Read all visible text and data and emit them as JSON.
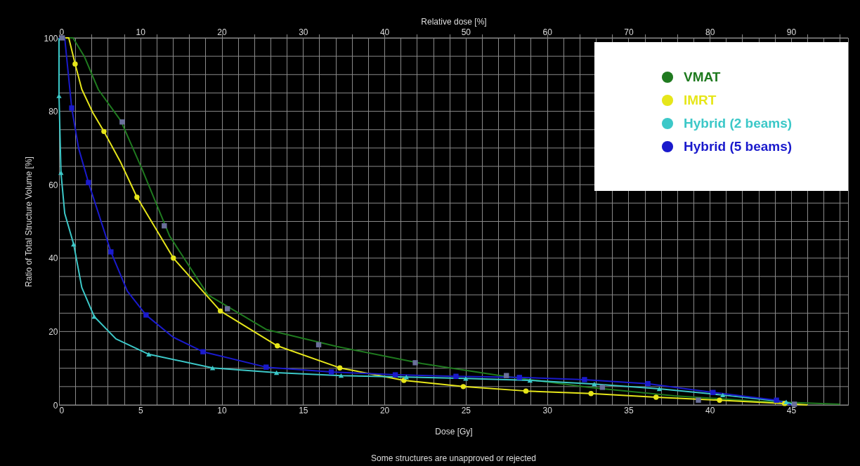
{
  "chart_data": {
    "type": "line",
    "xlabel": "Dose [Gy]",
    "ylabel": "Ratio of Total Structure Volume [%]",
    "x2label": "Relative dose [%]",
    "annotations": [
      "Some structures are unapproved or rejected"
    ],
    "xlim": [
      0,
      48.5
    ],
    "ylim": [
      0,
      100
    ],
    "x2lim": [
      0,
      97
    ],
    "xticks": [
      0,
      {
        "value": 1,
        "label": null
      },
      {
        "value": 2,
        "label": null
      },
      {
        "value": 3,
        "label": null
      },
      {
        "value": 4,
        "label": null
      },
      5,
      {
        "value": 6,
        "label": null
      },
      {
        "value": 7,
        "label": null
      },
      {
        "value": 8,
        "label": null
      },
      {
        "value": 9,
        "label": null
      },
      10,
      {
        "value": 11,
        "label": null
      },
      {
        "value": 12,
        "label": null
      },
      {
        "value": 13,
        "label": null
      },
      {
        "value": 14,
        "label": null
      },
      15,
      {
        "value": 16,
        "label": null
      },
      {
        "value": 17,
        "label": null
      },
      {
        "value": 18,
        "label": null
      },
      {
        "value": 19,
        "label": null
      },
      20,
      {
        "value": 21,
        "label": null
      },
      {
        "value": 22,
        "label": null
      },
      {
        "value": 23,
        "label": null
      },
      {
        "value": 24,
        "label": null
      },
      25,
      {
        "value": 26,
        "label": null
      },
      {
        "value": 27,
        "label": null
      },
      {
        "value": 28,
        "label": null
      },
      {
        "value": 29,
        "label": null
      },
      30,
      {
        "value": 31,
        "label": null
      },
      {
        "value": 32,
        "label": null
      },
      {
        "value": 33,
        "label": null
      },
      {
        "value": 34,
        "label": null
      },
      35,
      {
        "value": 36,
        "label": null
      },
      {
        "value": 37,
        "label": null
      },
      {
        "value": 38,
        "label": null
      },
      {
        "value": 39,
        "label": null
      },
      40,
      {
        "value": 41,
        "label": null
      },
      {
        "value": 42,
        "label": null
      },
      {
        "value": 43,
        "label": null
      },
      {
        "value": 44,
        "label": null
      },
      45,
      {
        "value": 46,
        "label": null
      },
      {
        "value": 47,
        "label": null
      },
      {
        "value": 48,
        "label": null
      }
    ],
    "yticks": [
      0,
      {
        "value": 5,
        "label": null
      },
      {
        "value": 10,
        "label": null
      },
      {
        "value": 15,
        "label": null
      },
      20,
      {
        "value": 25,
        "label": null
      },
      {
        "value": 30,
        "label": null
      },
      {
        "value": 35,
        "label": null
      },
      40,
      {
        "value": 45,
        "label": null
      },
      {
        "value": 50,
        "label": null
      },
      {
        "value": 55,
        "label": null
      },
      60,
      {
        "value": 65,
        "label": null
      },
      {
        "value": 70,
        "label": null
      },
      {
        "value": 75,
        "label": null
      },
      80,
      {
        "value": 85,
        "label": null
      },
      {
        "value": 90,
        "label": null
      },
      {
        "value": 95,
        "label": null
      },
      100
    ],
    "x2ticks": [
      0,
      10,
      20,
      30,
      40,
      50,
      60,
      70,
      80,
      90
    ],
    "grid": true,
    "legend": "top right",
    "line_style": "solid",
    "marker": "none",
    "series": [
      {
        "name": "VMAT",
        "color": "#1f7a1f",
        "x": [
          0,
          0.86,
          1.55,
          2.42,
          3.8,
          5.09,
          6.8,
          9.15,
          12.77,
          17.08,
          22.3,
          27.4,
          32.6,
          37.8,
          43.0,
          48.0
        ],
        "values": [
          100,
          100,
          95,
          85.9,
          77.4,
          64.4,
          46,
          30.0,
          20.5,
          15.9,
          11.3,
          7.8,
          4.8,
          2.5,
          1.0,
          0.2
        ]
      },
      {
        "name": "IMRT",
        "color": "#e6e61a",
        "x": [
          0,
          0.6,
          0.99,
          1.4,
          2.07,
          2.76,
          3.8,
          4.79,
          7.03,
          9.92,
          13.42,
          17.26,
          21.2,
          24.85,
          28.7,
          32.7,
          36.7,
          40.6,
          44.6,
          46
        ],
        "values": [
          100,
          100,
          92.9,
          86,
          79.7,
          74.5,
          66,
          56.6,
          40.0,
          25.6,
          16.1,
          10.1,
          6.7,
          5.0,
          3.8,
          3.1,
          2.1,
          1.3,
          0.4,
          0
        ]
      },
      {
        "name": "Hybrid (2 beams)",
        "color": "#3cc8c8",
        "x": [
          0,
          0,
          0.12,
          0.35,
          0.9,
          1.4,
          2.16,
          3.5,
          5.52,
          9.44,
          13.37,
          17.34,
          21.35,
          25.0,
          28.95,
          32.9,
          36.9,
          40.8,
          44.7,
          45.2
        ],
        "values": [
          100,
          84.2,
          63.3,
          52.2,
          43.8,
          32,
          24.1,
          18,
          13.8,
          10.1,
          8.8,
          8.0,
          7.6,
          7.2,
          6.7,
          5.7,
          4.4,
          2.7,
          0.8,
          0
        ]
      },
      {
        "name": "Hybrid (5 beams)",
        "color": "#1a1acc",
        "x": [
          0,
          0.35,
          0.78,
          1.2,
          1.81,
          3.19,
          4.2,
          5.35,
          7,
          8.85,
          12.73,
          16.74,
          20.67,
          24.4,
          28.3,
          32.3,
          36.2,
          40.2,
          44.1,
          45
        ],
        "values": [
          100,
          100,
          80.9,
          70,
          60.6,
          41.7,
          31,
          24.5,
          18.5,
          14.5,
          10.3,
          9.0,
          8.2,
          7.8,
          7.5,
          6.9,
          5.8,
          3.4,
          1.3,
          0
        ]
      },
      {
        "type": "scatter",
        "marker": "square",
        "color": "#6a6f9a",
        "x": [
          0.2,
          3.88,
          6.47,
          10.35,
          15.96,
          21.9,
          27.5,
          33.4,
          39.3,
          45.2
        ],
        "values": [
          100,
          77.1,
          48.8,
          26.2,
          16.4,
          11.5,
          8.0,
          4.8,
          1.3,
          0.2
        ]
      },
      {
        "type": "scatter",
        "marker": "circle",
        "color": "#e6e61a",
        "x": [
          0.99,
          2.76,
          4.79,
          7.03,
          9.92,
          13.42,
          17.26,
          21.2,
          24.85,
          28.7,
          32.7,
          36.7,
          40.6,
          44.6
        ],
        "values": [
          92.9,
          74.5,
          56.6,
          40.0,
          25.6,
          16.1,
          10.1,
          6.7,
          5.0,
          3.8,
          3.1,
          2.1,
          1.3,
          0.4
        ]
      },
      {
        "type": "scatter",
        "marker": "triangle",
        "color": "#3cc8c8",
        "x": [
          0,
          0.12,
          0.9,
          2.16,
          5.52,
          9.44,
          13.37,
          17.34,
          21.35,
          25.0,
          28.95,
          32.9,
          36.9,
          40.8,
          44.7
        ],
        "values": [
          84.2,
          63.3,
          43.8,
          24.1,
          13.8,
          10.1,
          8.8,
          8.0,
          7.6,
          7.2,
          6.7,
          5.7,
          4.4,
          2.7,
          0.8
        ]
      },
      {
        "type": "scatter",
        "marker": "square",
        "color": "#1a1acc",
        "x": [
          0.78,
          1.81,
          3.19,
          5.35,
          8.85,
          12.73,
          16.74,
          20.67,
          24.4,
          28.3,
          32.3,
          36.2,
          40.2,
          44.1
        ],
        "values": [
          80.9,
          60.6,
          41.7,
          24.5,
          14.5,
          10.3,
          9.0,
          8.2,
          7.8,
          7.5,
          6.9,
          5.8,
          3.4,
          1.3
        ]
      }
    ]
  }
}
